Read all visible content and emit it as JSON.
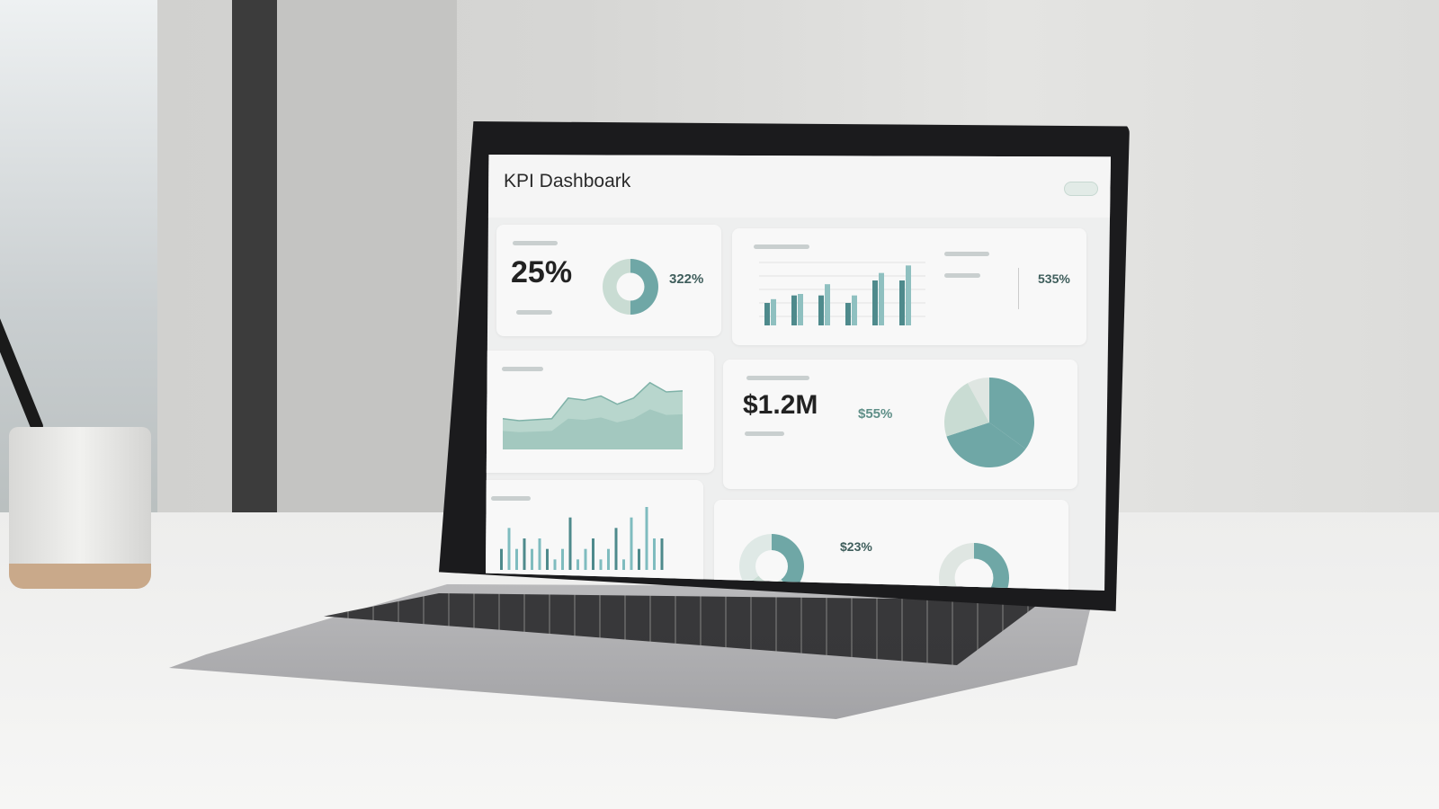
{
  "dashboard": {
    "title": "KPI Dashboark",
    "card1": {
      "value": "25%",
      "secondary": "322%"
    },
    "card2": {
      "secondary": "535%"
    },
    "card4": {
      "value": "$1.2M",
      "secondary": "$55%"
    },
    "card6": {
      "secondary": "$23%"
    }
  },
  "colors": {
    "accent": "#6fa7a6",
    "accent_dark": "#4e8a8c",
    "accent_light": "#c9dcd3"
  },
  "chart_data": [
    {
      "type": "pie",
      "values": [
        50,
        50
      ]
    },
    {
      "type": "bar",
      "series": [
        {
          "values": [
            3,
            4,
            4,
            3,
            6,
            6
          ]
        },
        {
          "values": [
            3.5,
            4.2,
            5.5,
            4,
            7,
            8
          ]
        }
      ]
    },
    {
      "type": "area",
      "values": [
        3,
        2.8,
        2.9,
        3,
        5,
        4.8,
        5.2,
        4.4,
        5,
        6.5,
        5.6,
        5.7
      ]
    },
    {
      "type": "pie",
      "values": [
        35,
        35,
        22,
        8
      ]
    },
    {
      "type": "bar",
      "values": [
        2,
        4,
        2,
        3,
        2,
        3,
        2,
        1,
        2,
        5,
        1,
        2,
        3,
        1,
        2,
        4,
        1,
        5,
        2,
        6,
        3,
        3
      ]
    }
  ]
}
